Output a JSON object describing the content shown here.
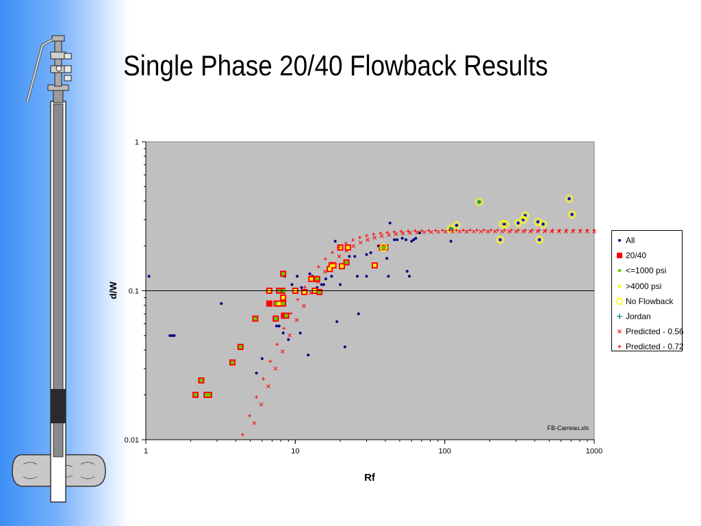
{
  "slide": {
    "title": "Single Phase 20/40 Flowback Results"
  },
  "chart_data": {
    "type": "scatter",
    "title": "",
    "xlabel": "Rf",
    "ylabel": "d/W",
    "xscale": "log",
    "yscale": "log",
    "xlim": [
      1,
      1000
    ],
    "ylim": [
      0.01,
      1
    ],
    "x_tick_labels": [
      "1",
      "10",
      "100",
      "1000"
    ],
    "y_tick_labels": [
      "0.01",
      "0.1",
      "1"
    ],
    "reference_line_y": 0.1,
    "plot_background": "#c0c0c0",
    "grid": false,
    "legend_position": "right",
    "annotation": "FB-Carreau.xls",
    "series": [
      {
        "name": "All",
        "color": "#000080",
        "marker": "dot",
        "points": [
          [
            1.05,
            0.125
          ],
          [
            1.45,
            0.05
          ],
          [
            1.5,
            0.05
          ],
          [
            1.55,
            0.05
          ],
          [
            3.2,
            0.082
          ],
          [
            5.5,
            0.028
          ],
          [
            6,
            0.035
          ],
          [
            7.5,
            0.058
          ],
          [
            7.8,
            0.058
          ],
          [
            8.3,
            0.052
          ],
          [
            8.5,
            0.125
          ],
          [
            9,
            0.047
          ],
          [
            9.5,
            0.11
          ],
          [
            10.3,
            0.125
          ],
          [
            10.8,
            0.052
          ],
          [
            11,
            0.105
          ],
          [
            12.2,
            0.037
          ],
          [
            12.5,
            0.13
          ],
          [
            13,
            0.125
          ],
          [
            14,
            0.105
          ],
          [
            15,
            0.11
          ],
          [
            15.5,
            0.11
          ],
          [
            16,
            0.12
          ],
          [
            17.5,
            0.125
          ],
          [
            18.5,
            0.215
          ],
          [
            19,
            0.062
          ],
          [
            20,
            0.11
          ],
          [
            21.5,
            0.042
          ],
          [
            23,
            0.17
          ],
          [
            25,
            0.17
          ],
          [
            26,
            0.125
          ],
          [
            26.5,
            0.07
          ],
          [
            30,
            0.125
          ],
          [
            30,
            0.175
          ],
          [
            32,
            0.18
          ],
          [
            36,
            0.2
          ],
          [
            40,
            0.19
          ],
          [
            41,
            0.165
          ],
          [
            42,
            0.125
          ],
          [
            43,
            0.285
          ],
          [
            46,
            0.22
          ],
          [
            48,
            0.22
          ],
          [
            52,
            0.225
          ],
          [
            55,
            0.22
          ],
          [
            56,
            0.135
          ],
          [
            58,
            0.125
          ],
          [
            60,
            0.215
          ],
          [
            62,
            0.22
          ],
          [
            64,
            0.225
          ],
          [
            68,
            0.245
          ],
          [
            110,
            0.215
          ],
          [
            112,
            0.26
          ],
          [
            120,
            0.275
          ],
          [
            170,
            0.395
          ],
          [
            235,
            0.22
          ],
          [
            245,
            0.28
          ],
          [
            255,
            0.28
          ],
          [
            310,
            0.285
          ],
          [
            335,
            0.3
          ],
          [
            345,
            0.32
          ],
          [
            420,
            0.29
          ],
          [
            430,
            0.22
          ],
          [
            455,
            0.28
          ],
          [
            680,
            0.415
          ],
          [
            710,
            0.325
          ]
        ]
      },
      {
        "name": "20/40",
        "color": "#ff0000",
        "marker": "square",
        "points": [
          [
            2.15,
            0.02
          ],
          [
            2.35,
            0.025
          ],
          [
            2.55,
            0.02
          ],
          [
            2.65,
            0.02
          ],
          [
            3.8,
            0.033
          ],
          [
            4.3,
            0.042
          ],
          [
            5.4,
            0.065
          ],
          [
            6.7,
            0.082
          ],
          [
            6.7,
            0.1
          ],
          [
            7.4,
            0.065
          ],
          [
            7.5,
            0.082
          ],
          [
            7.8,
            0.082
          ],
          [
            7.8,
            0.1
          ],
          [
            8.2,
            0.1
          ],
          [
            8.3,
            0.082
          ],
          [
            8.3,
            0.09
          ],
          [
            8.3,
            0.13
          ],
          [
            8.4,
            0.068
          ],
          [
            8.7,
            0.068
          ],
          [
            10,
            0.1
          ],
          [
            11.5,
            0.098
          ],
          [
            12.8,
            0.12
          ],
          [
            13.5,
            0.1
          ],
          [
            14,
            0.12
          ],
          [
            14.5,
            0.098
          ],
          [
            17,
            0.14
          ],
          [
            17.5,
            0.148
          ],
          [
            18,
            0.148
          ],
          [
            20,
            0.195
          ],
          [
            20.5,
            0.146
          ],
          [
            22,
            0.155
          ],
          [
            22.5,
            0.195
          ],
          [
            34,
            0.148
          ],
          [
            38,
            0.195
          ],
          [
            40,
            0.195
          ]
        ]
      },
      {
        "name": "<=1000 psi",
        "color": "#66cc00",
        "marker": "small-square",
        "points": [
          [
            2.15,
            0.02
          ],
          [
            2.35,
            0.025
          ],
          [
            2.55,
            0.02
          ],
          [
            2.65,
            0.02
          ],
          [
            3.8,
            0.033
          ],
          [
            4.3,
            0.042
          ],
          [
            5.4,
            0.065
          ],
          [
            7.4,
            0.065
          ],
          [
            7.5,
            0.082
          ],
          [
            7.8,
            0.1
          ],
          [
            8.3,
            0.082
          ],
          [
            8.3,
            0.13
          ],
          [
            8.4,
            0.1
          ],
          [
            8.7,
            0.068
          ],
          [
            14,
            0.12
          ],
          [
            14.5,
            0.098
          ],
          [
            22,
            0.155
          ],
          [
            38,
            0.195
          ],
          [
            40,
            0.195
          ],
          [
            110,
            0.26
          ],
          [
            170,
            0.395
          ]
        ]
      },
      {
        "name": ">4000 psi",
        "color": "#ffff00",
        "marker": "small-square",
        "points": [
          [
            6.7,
            0.1
          ],
          [
            7.8,
            0.082
          ],
          [
            8.3,
            0.09
          ],
          [
            10,
            0.1
          ],
          [
            11.5,
            0.098
          ],
          [
            12.8,
            0.12
          ],
          [
            13.5,
            0.1
          ],
          [
            17,
            0.14
          ],
          [
            17.5,
            0.148
          ],
          [
            18,
            0.148
          ],
          [
            20,
            0.195
          ],
          [
            20.5,
            0.146
          ],
          [
            22.5,
            0.195
          ],
          [
            34,
            0.148
          ]
        ]
      },
      {
        "name": "No Flowback",
        "color": "#ffff00",
        "marker": "ring",
        "points": [
          [
            110,
            0.26
          ],
          [
            120,
            0.275
          ],
          [
            170,
            0.395
          ],
          [
            235,
            0.22
          ],
          [
            245,
            0.28
          ],
          [
            255,
            0.28
          ],
          [
            310,
            0.285
          ],
          [
            335,
            0.3
          ],
          [
            345,
            0.32
          ],
          [
            420,
            0.29
          ],
          [
            430,
            0.22
          ],
          [
            455,
            0.28
          ],
          [
            680,
            0.415
          ],
          [
            710,
            0.325
          ],
          [
            39,
            0.195
          ]
        ]
      },
      {
        "name": "Jordan",
        "color": "#008080",
        "marker": "plus-small",
        "points": [
          [
            110,
            0.26
          ],
          [
            170,
            0.395
          ]
        ]
      },
      {
        "name": "Predicted - 0.56",
        "color": "#ff0000",
        "marker": "x",
        "a": 0.25,
        "b": 0.00112,
        "c": 2.8,
        "x_start": 1.6,
        "x_end": 1000,
        "count": 60
      },
      {
        "name": "Predicted - 0.72",
        "color": "#ff0000",
        "marker": "plus",
        "a": 0.255,
        "b": 0.00072,
        "c": 2.9,
        "x_start": 2.35,
        "x_end": 1000,
        "count": 58
      }
    ]
  },
  "legend_symbols": {
    "All": "dot",
    "20/40": "square",
    "<=1000 psi": "small-square",
    ">4000 psi": "small-square",
    "No Flowback": "ring",
    "Jordan": "plus",
    "Predicted - 0.56": "x",
    "Predicted - 0.72": "plus"
  }
}
